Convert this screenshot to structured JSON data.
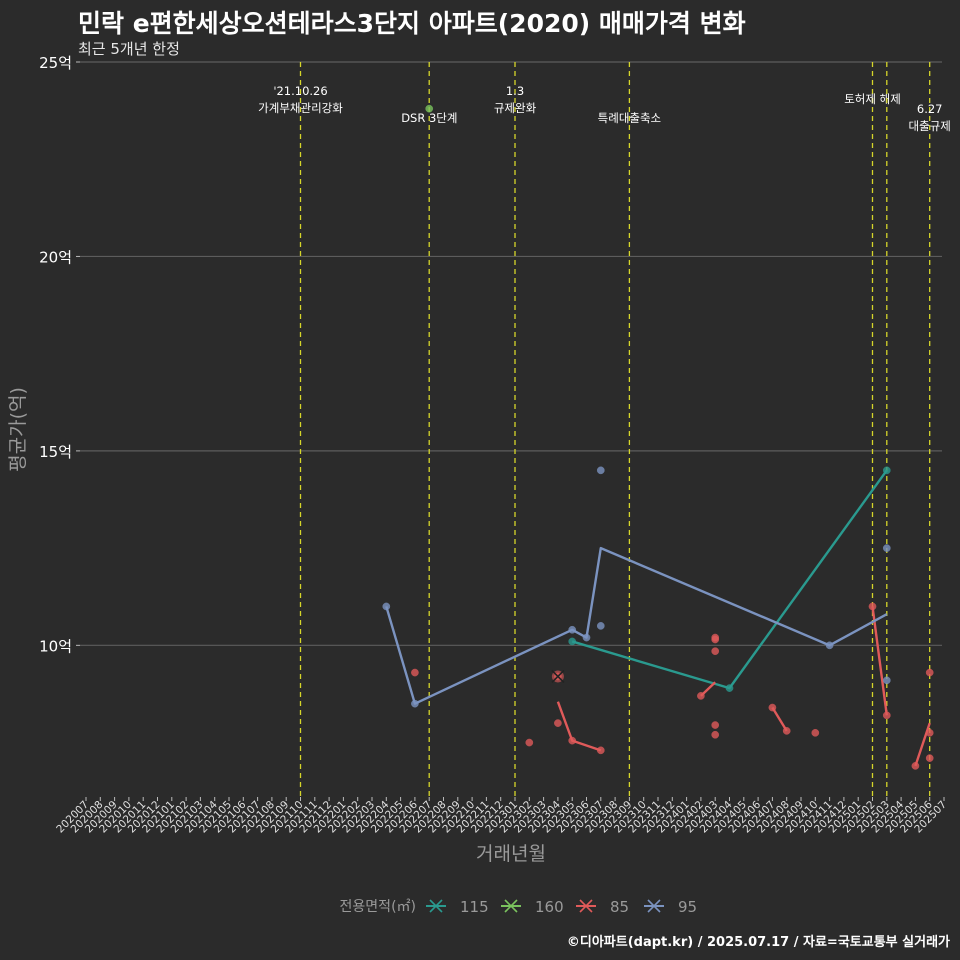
{
  "header": {
    "title": "민락 e편한세상오션테라스3단지 아파트(2020) 매매가격 변화",
    "subtitle": "최근 5개년 한정"
  },
  "caption": "©디아파트(dapt.kr) / 2025.07.17 / 자료=국토교통부 실거래가",
  "chart_data": {
    "type": "line",
    "xlabel": "거래년월",
    "ylabel": "평균가(억)",
    "ylim": [
      6.1,
      25
    ],
    "y_ticks": [
      10,
      15,
      20,
      25
    ],
    "y_tick_labels": [
      "10억",
      "15억",
      "20억",
      "25억"
    ],
    "x_ticks": [
      "202007",
      "202008",
      "202009",
      "202010",
      "202011",
      "202012",
      "202101",
      "202102",
      "202103",
      "202104",
      "202105",
      "202106",
      "202107",
      "202108",
      "202109",
      "202110",
      "202111",
      "202112",
      "202201",
      "202202",
      "202203",
      "202204",
      "202205",
      "202206",
      "202207",
      "202208",
      "202209",
      "202210",
      "202211",
      "202212",
      "202301",
      "202302",
      "202303",
      "202304",
      "202305",
      "202306",
      "202307",
      "202308",
      "202309",
      "202310",
      "202311",
      "202312",
      "202401",
      "202402",
      "202403",
      "202404",
      "202405",
      "202406",
      "202407",
      "202408",
      "202409",
      "202410",
      "202411",
      "202412",
      "202501",
      "202502",
      "202503",
      "202504",
      "202505",
      "202506",
      "202507"
    ],
    "grid": "horizontal",
    "events": [
      {
        "month": "202110",
        "label": "'21.10.26\n가계부채관리강화"
      },
      {
        "month": "202207",
        "label": "DSR 3단계"
      },
      {
        "month": "202301",
        "label": "1.3\n규제완화"
      },
      {
        "month": "202309",
        "label": "특례대출축소"
      },
      {
        "month": "202502",
        "label": "토허제 해제"
      },
      {
        "month": "202503",
        "label": ""
      },
      {
        "month": "202506",
        "label": "6.27\n대출규제"
      }
    ],
    "legend": {
      "title": "전용면적(㎡)",
      "position": "bottom"
    },
    "series": [
      {
        "name": "115",
        "color": "#2a9a8f",
        "line": [
          [
            "202305",
            10.1
          ],
          [
            "202404",
            8.9
          ],
          [
            "202503",
            14.5
          ]
        ],
        "points": [
          [
            "202305",
            10.1
          ],
          [
            "202404",
            8.9
          ],
          [
            "202503",
            14.5
          ]
        ]
      },
      {
        "name": "160",
        "color": "#7ac35e",
        "line": [],
        "points": [
          [
            "202207",
            23.8
          ]
        ]
      },
      {
        "name": "85",
        "color": "#e05a5a",
        "line": [
          [
            "202304",
            8.55
          ],
          [
            "202305",
            7.55
          ],
          [
            "202307",
            7.3
          ],
          null,
          [
            "202402",
            8.7
          ],
          [
            "202403",
            9.05
          ],
          null,
          [
            "202407",
            8.4
          ],
          [
            "202408",
            7.8
          ],
          null,
          [
            "202502",
            11.0
          ],
          [
            "202503",
            8.2
          ],
          null,
          [
            "202505",
            6.9
          ],
          [
            "202506",
            8.0
          ]
        ],
        "points": [
          [
            "202206",
            9.3
          ],
          [
            "202302",
            7.5
          ],
          [
            "202304",
            9.2
          ],
          [
            "202304",
            8.0
          ],
          [
            "202305",
            7.55
          ],
          [
            "202307",
            7.3
          ],
          [
            "202402",
            8.7
          ],
          [
            "202403",
            10.2
          ],
          [
            "202403",
            10.15
          ],
          [
            "202403",
            9.85
          ],
          [
            "202403",
            7.95
          ],
          [
            "202403",
            7.7
          ],
          [
            "202407",
            8.4
          ],
          [
            "202408",
            7.8
          ],
          [
            "202410",
            7.75
          ],
          [
            "202502",
            11.0
          ],
          [
            "202503",
            8.2
          ],
          [
            "202505",
            6.9
          ],
          [
            "202506",
            9.3
          ],
          [
            "202506",
            7.75
          ],
          [
            "202506",
            7.1
          ]
        ]
      },
      {
        "name": "95",
        "color": "#7b93c0",
        "line": [
          [
            "202204",
            11.0
          ],
          [
            "202206",
            8.5
          ],
          [
            "202305",
            10.4
          ],
          [
            "202306",
            10.2
          ],
          [
            "202307",
            12.5
          ],
          [
            "202411",
            10.0
          ],
          [
            "202503",
            10.8
          ]
        ],
        "points": [
          [
            "202204",
            11.0
          ],
          [
            "202206",
            8.5
          ],
          [
            "202305",
            10.4
          ],
          [
            "202306",
            10.2
          ],
          [
            "202307",
            14.5
          ],
          [
            "202307",
            10.5
          ],
          [
            "202411",
            10.0
          ],
          [
            "202503",
            12.5
          ],
          [
            "202503",
            9.1
          ]
        ]
      }
    ]
  }
}
